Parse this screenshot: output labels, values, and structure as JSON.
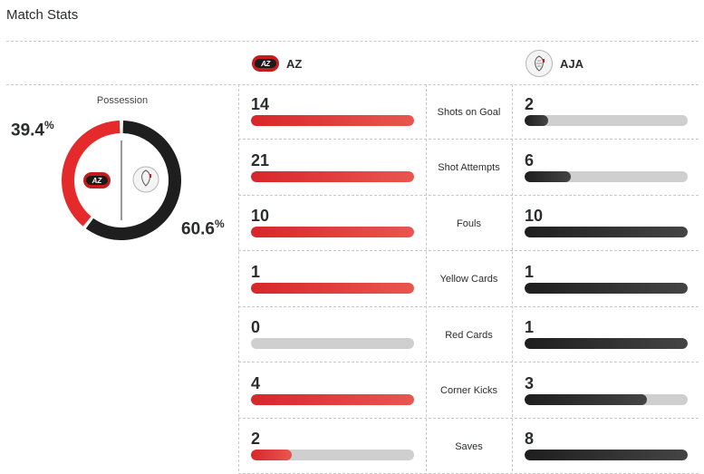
{
  "header": {
    "title": "Match Stats"
  },
  "teams": {
    "home": {
      "abbr": "AZ",
      "logo_text": "AZ",
      "color": "#d8262a"
    },
    "away": {
      "abbr": "AJA",
      "color": "#1e1e1e"
    }
  },
  "possession": {
    "label": "Possession",
    "home_value": "39.4",
    "away_value": "60.6",
    "unit": "%",
    "home_fraction": 0.394,
    "away_fraction": 0.606
  },
  "stats": [
    {
      "label": "Shots on Goal",
      "home": "14",
      "away": "2",
      "home_fill": 1.0,
      "away_fill": 0.143
    },
    {
      "label": "Shot Attempts",
      "home": "21",
      "away": "6",
      "home_fill": 1.0,
      "away_fill": 0.286
    },
    {
      "label": "Fouls",
      "home": "10",
      "away": "10",
      "home_fill": 1.0,
      "away_fill": 1.0
    },
    {
      "label": "Yellow Cards",
      "home": "1",
      "away": "1",
      "home_fill": 1.0,
      "away_fill": 1.0
    },
    {
      "label": "Red Cards",
      "home": "0",
      "away": "1",
      "home_fill": 0.0,
      "away_fill": 1.0
    },
    {
      "label": "Corner Kicks",
      "home": "4",
      "away": "3",
      "home_fill": 1.0,
      "away_fill": 0.75
    },
    {
      "label": "Saves",
      "home": "2",
      "away": "8",
      "home_fill": 0.25,
      "away_fill": 1.0
    }
  ]
}
